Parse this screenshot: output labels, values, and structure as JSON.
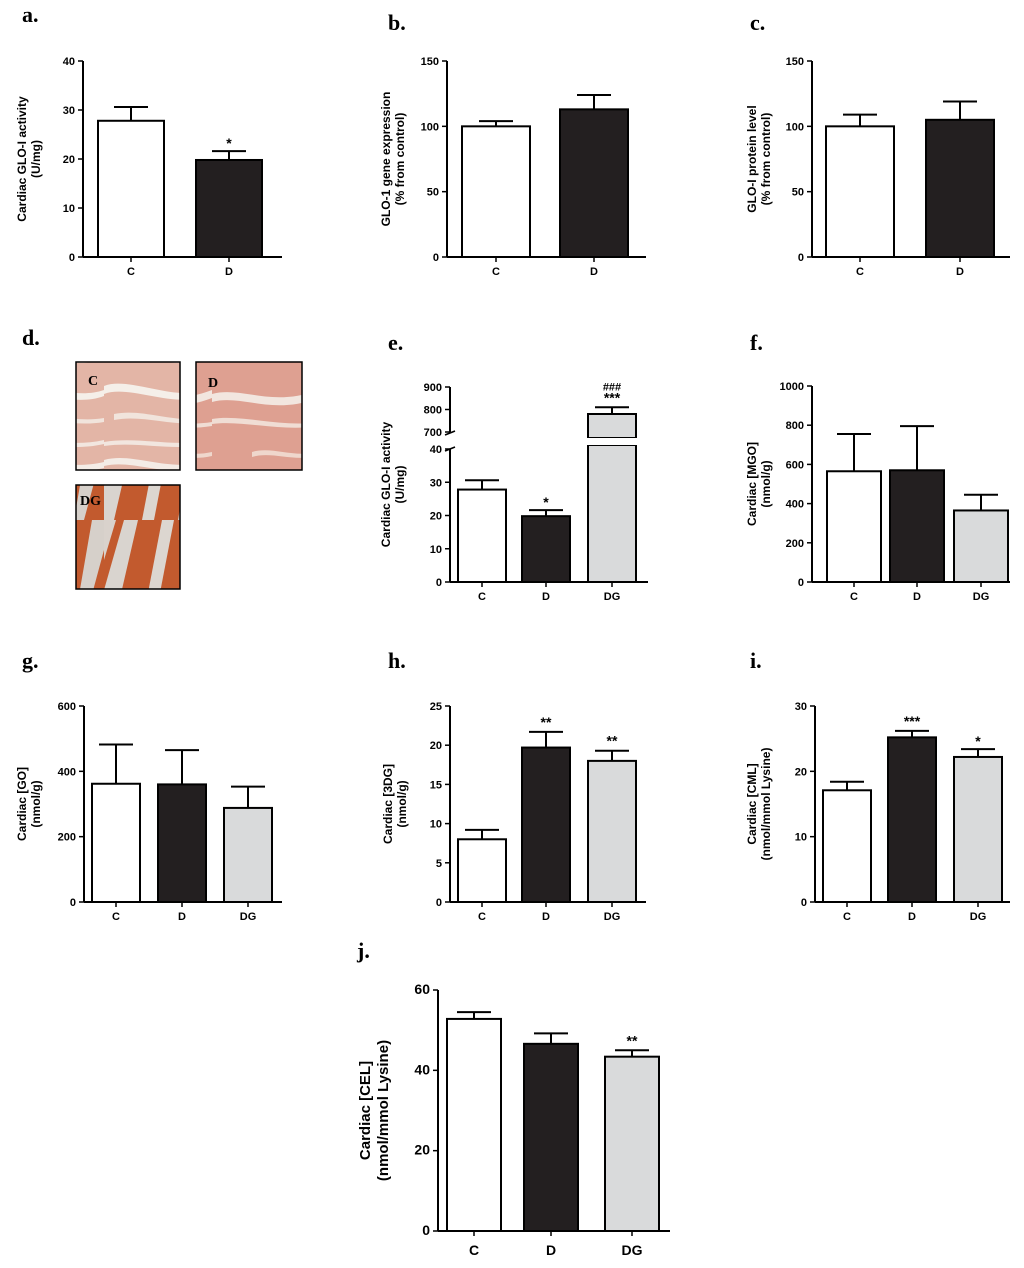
{
  "chart_data": [
    {
      "id": "a",
      "panel_label": "a.",
      "type": "bar",
      "categories": [
        "C",
        "D"
      ],
      "values": [
        27.8,
        19.8
      ],
      "errors": [
        2.8,
        1.8
      ],
      "stars": [
        "",
        "*"
      ],
      "hashes": [
        "",
        ""
      ],
      "ylabel": [
        "Cardiac GLO-I activity",
        "(U/mg)"
      ],
      "ylim": [
        0,
        40
      ],
      "yticks": [
        0,
        10,
        20,
        30,
        40
      ]
    },
    {
      "id": "b",
      "panel_label": "b.",
      "type": "bar",
      "categories": [
        "C",
        "D"
      ],
      "values": [
        100,
        113
      ],
      "errors": [
        4,
        11
      ],
      "stars": [
        "",
        ""
      ],
      "hashes": [
        "",
        ""
      ],
      "ylabel": [
        "GLO-1 gene expression",
        "(% from control)"
      ],
      "ylim": [
        0,
        150
      ],
      "yticks": [
        0,
        50,
        100,
        150
      ]
    },
    {
      "id": "c",
      "panel_label": "c.",
      "type": "bar",
      "categories": [
        "C",
        "D"
      ],
      "values": [
        100,
        105
      ],
      "errors": [
        9,
        14
      ],
      "stars": [
        "",
        ""
      ],
      "hashes": [
        "",
        ""
      ],
      "ylabel": [
        "GLO-I protein level",
        "(% from control)"
      ],
      "ylim": [
        0,
        150
      ],
      "yticks": [
        0,
        50,
        100,
        150
      ]
    },
    {
      "id": "e",
      "panel_label": "e.",
      "type": "bar",
      "broken_axis": true,
      "categories": [
        "C",
        "D",
        "DG"
      ],
      "values": [
        27.8,
        19.8,
        780
      ],
      "errors": [
        2.8,
        1.8,
        30
      ],
      "stars": [
        "",
        "*",
        "***"
      ],
      "hashes": [
        "",
        "",
        "###"
      ],
      "ylabel": [
        "Cardiac GLO-I activity",
        "(U/mg)"
      ],
      "ylim_lower": [
        0,
        40
      ],
      "yticks_lower": [
        0,
        10,
        20,
        30,
        40
      ],
      "ylim_upper": [
        700,
        900
      ],
      "yticks_upper": [
        700,
        800,
        900
      ]
    },
    {
      "id": "f",
      "panel_label": "f.",
      "type": "bar",
      "categories": [
        "C",
        "D",
        "DG"
      ],
      "values": [
        565,
        570,
        365
      ],
      "errors": [
        190,
        225,
        80
      ],
      "stars": [
        "",
        "",
        ""
      ],
      "hashes": [
        "",
        "",
        ""
      ],
      "ylabel": [
        "Cardiac [MGO]",
        "(nmol/g)"
      ],
      "ylim": [
        0,
        1000
      ],
      "yticks": [
        0,
        200,
        400,
        600,
        800,
        1000
      ]
    },
    {
      "id": "g",
      "panel_label": "g.",
      "type": "bar",
      "categories": [
        "C",
        "D",
        "DG"
      ],
      "values": [
        362,
        360,
        288
      ],
      "errors": [
        120,
        105,
        65
      ],
      "stars": [
        "",
        "",
        ""
      ],
      "hashes": [
        "",
        "",
        ""
      ],
      "ylabel": [
        "Cardiac [GO]",
        "(nmol/g)"
      ],
      "ylim": [
        0,
        600
      ],
      "yticks": [
        0,
        200,
        400,
        600
      ]
    },
    {
      "id": "h",
      "panel_label": "h.",
      "type": "bar",
      "categories": [
        "C",
        "D",
        "DG"
      ],
      "values": [
        8.0,
        19.7,
        18.0
      ],
      "errors": [
        1.2,
        2.0,
        1.3
      ],
      "stars": [
        "",
        "**",
        "**"
      ],
      "hashes": [
        "",
        "",
        ""
      ],
      "ylabel": [
        "Cardiac [3DG]",
        "(nmol/g)"
      ],
      "ylim": [
        0,
        25
      ],
      "yticks": [
        0,
        5,
        10,
        15,
        20,
        25
      ]
    },
    {
      "id": "i",
      "panel_label": "i.",
      "type": "bar",
      "categories": [
        "C",
        "D",
        "DG"
      ],
      "values": [
        17.1,
        25.2,
        22.2
      ],
      "errors": [
        1.3,
        1.0,
        1.2
      ],
      "stars": [
        "",
        "***",
        "*"
      ],
      "hashes": [
        "",
        "",
        ""
      ],
      "ylabel": [
        "Cardiac [CML]",
        "(nmol/mmol Lysine)"
      ],
      "ylim": [
        0,
        30
      ],
      "yticks": [
        0,
        10,
        20,
        30
      ]
    },
    {
      "id": "j",
      "panel_label": "j.",
      "type": "bar",
      "categories": [
        "C",
        "D",
        "DG"
      ],
      "values": [
        52.8,
        46.6,
        43.4
      ],
      "errors": [
        1.7,
        2.6,
        1.6
      ],
      "stars": [
        "",
        "",
        "**"
      ],
      "hashes": [
        "",
        "",
        ""
      ],
      "ylabel": [
        "Cardiac [CEL]",
        "(nmol/mmol Lysine)"
      ],
      "ylim": [
        0,
        60
      ],
      "yticks": [
        0,
        20,
        40,
        60
      ]
    }
  ],
  "micrographs": {
    "panel_label": "d.",
    "labels": [
      "C",
      "D",
      "DG"
    ]
  },
  "colors": {
    "C": "#ffffff",
    "D": "#231f20",
    "DG": "#d9dadb",
    "axis": "#000000"
  }
}
